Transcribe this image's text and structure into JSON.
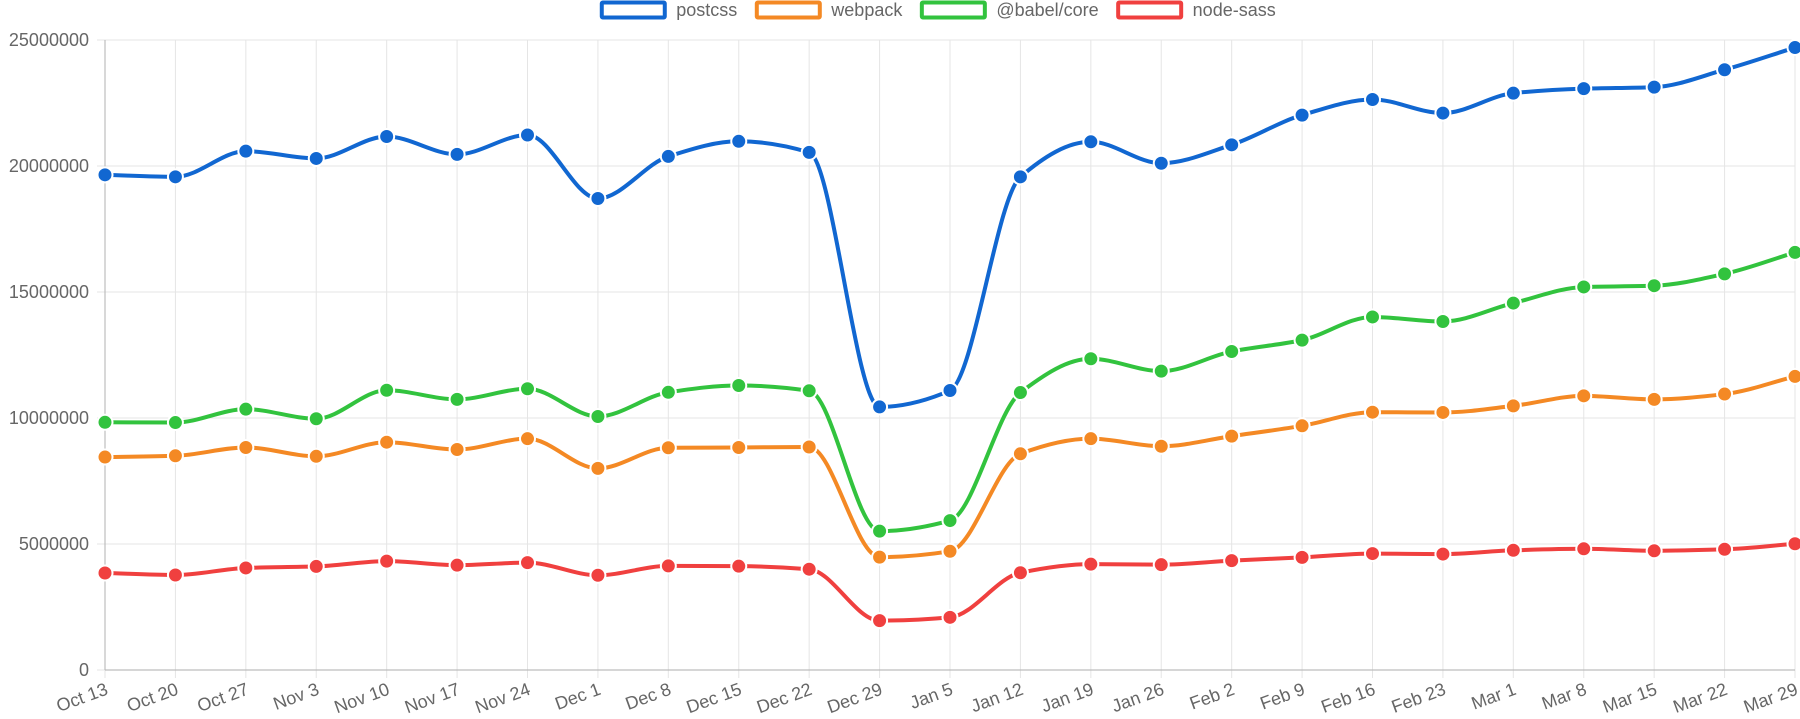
{
  "chart_data": {
    "type": "line",
    "categories": [
      "Oct 13",
      "Oct 20",
      "Oct 27",
      "Nov 3",
      "Nov 10",
      "Nov 17",
      "Nov 24",
      "Dec 1",
      "Dec 8",
      "Dec 15",
      "Dec 22",
      "Dec 29",
      "Jan 5",
      "Jan 12",
      "Jan 19",
      "Jan 26",
      "Feb 2",
      "Feb 9",
      "Feb 16",
      "Feb 23",
      "Mar 1",
      "Mar 8",
      "Mar 15",
      "Mar 22",
      "Mar 29"
    ],
    "ylim": [
      0,
      25000000
    ],
    "yticks": [
      "0",
      "5000000",
      "10000000",
      "15000000",
      "20000000",
      "25000000"
    ],
    "grid": true,
    "legend_position": "top",
    "series": [
      {
        "name": "postcss",
        "color": "#1167d1",
        "values": [
          19650000,
          19570000,
          20590000,
          20300000,
          21170000,
          20460000,
          21230000,
          18710000,
          20380000,
          20980000,
          20540000,
          10440000,
          11090000,
          19570000,
          20960000,
          20110000,
          20840000,
          22020000,
          22640000,
          22100000,
          22890000,
          23070000,
          23130000,
          23820000,
          24700000
        ]
      },
      {
        "name": "webpack",
        "color": "#f48924",
        "values": [
          8450000,
          8500000,
          8830000,
          8480000,
          9040000,
          8750000,
          9180000,
          8000000,
          8820000,
          8830000,
          8850000,
          4480000,
          4710000,
          8580000,
          9180000,
          8880000,
          9280000,
          9690000,
          10230000,
          10220000,
          10480000,
          10880000,
          10740000,
          10950000,
          11650000
        ]
      },
      {
        "name": "@babel/core",
        "color": "#32c33e",
        "values": [
          9830000,
          9820000,
          10350000,
          9970000,
          11100000,
          10740000,
          11160000,
          10060000,
          11020000,
          11290000,
          11080000,
          5510000,
          5930000,
          11010000,
          12350000,
          11860000,
          12640000,
          13090000,
          14010000,
          13830000,
          14560000,
          15200000,
          15250000,
          15720000,
          16570000
        ]
      },
      {
        "name": "node-sass",
        "color": "#f0403f",
        "values": [
          3850000,
          3770000,
          4050000,
          4110000,
          4320000,
          4160000,
          4260000,
          3760000,
          4130000,
          4120000,
          4000000,
          1960000,
          2090000,
          3860000,
          4200000,
          4180000,
          4340000,
          4470000,
          4620000,
          4600000,
          4750000,
          4810000,
          4730000,
          4790000,
          5010000
        ]
      }
    ]
  }
}
